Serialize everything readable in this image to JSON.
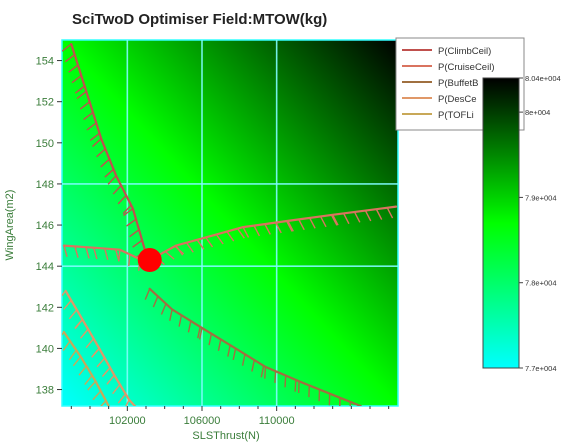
{
  "chart_data": {
    "type": "heatmap",
    "title": "SciTwoD Optimiser Field:MTOW(kg)",
    "xlabel": "SLSThrust(N)",
    "ylabel": "WingArea(m2)",
    "xlim": [
      98500,
      116500
    ],
    "ylim": [
      137.2,
      155.0
    ],
    "x_ticks": [
      102000,
      106000,
      110000
    ],
    "x_tick_labels": [
      "102000",
      "106000",
      "110000"
    ],
    "y_ticks": [
      138,
      140,
      142,
      144,
      146,
      148,
      150,
      152,
      154
    ],
    "y_tick_labels": [
      "138",
      "140",
      "142",
      "144",
      "146",
      "148",
      "150",
      "152",
      "154"
    ],
    "grid_x": [
      102000,
      106000,
      110000
    ],
    "grid_y": [
      144,
      148
    ],
    "grid": true,
    "legend_placement": "top-right",
    "colorbar": {
      "min": 77000,
      "max": 80400,
      "ticks": [
        77000,
        77600,
        78200,
        78800,
        79400,
        80000,
        80400
      ],
      "tick_labels": [
        "7.7e+004",
        "",
        "7.8e+004",
        "",
        "7.9e+004",
        "8e+004",
        "8.04e+004"
      ],
      "label_ticks": [
        77000,
        78000,
        79000,
        80000,
        80400
      ],
      "colors": [
        "#00ffff",
        "#00ff00",
        "#000000"
      ]
    },
    "field": {
      "low_corner": "bottom-left",
      "high_corner": "top-right",
      "colors": [
        "#00ffff",
        "#00ff00",
        "#000000"
      ]
    },
    "optimum": {
      "x": 103200,
      "y": 144.3,
      "color": "#ff0000"
    },
    "series": [
      {
        "name": "P(ClimbCeil)",
        "color": "#c0504d",
        "points": [
          [
            99000,
            154.8
          ],
          [
            99800,
            152.5
          ],
          [
            100600,
            150.2
          ],
          [
            101400,
            148.4
          ],
          [
            102300,
            146.8
          ],
          [
            103000,
            144.6
          ]
        ]
      },
      {
        "name": "P(CruiseCeil)",
        "color": "#d9735f",
        "points": [
          [
            98600,
            145.0
          ],
          [
            100200,
            144.9
          ],
          [
            101600,
            144.8
          ],
          [
            103000,
            144.2
          ],
          [
            104600,
            145.0
          ],
          [
            106200,
            145.4
          ],
          [
            108200,
            145.9
          ],
          [
            110600,
            146.2
          ],
          [
            113000,
            146.5
          ],
          [
            116400,
            146.9
          ]
        ]
      },
      {
        "name": "P(BuffetBoundary)",
        "color": "#a07040",
        "points": [
          [
            103200,
            142.9
          ],
          [
            104400,
            141.9
          ],
          [
            106000,
            141.0
          ],
          [
            107800,
            140.0
          ],
          [
            109400,
            139.1
          ],
          [
            111200,
            138.4
          ],
          [
            113400,
            137.6
          ],
          [
            114500,
            137.2
          ]
        ]
      },
      {
        "name": "P(DesCeil)",
        "color": "#e09868",
        "points": [
          [
            98700,
            142.8
          ],
          [
            99600,
            141.4
          ],
          [
            100500,
            140.0
          ],
          [
            101300,
            138.7
          ],
          [
            102100,
            137.5
          ],
          [
            102400,
            137.2
          ]
        ]
      },
      {
        "name": "P(TOFL)",
        "color": "#c8a858",
        "points": [
          [
            98600,
            140.8
          ],
          [
            99500,
            139.6
          ],
          [
            100300,
            138.4
          ],
          [
            101000,
            137.2
          ]
        ]
      }
    ],
    "legend_labels": [
      "P(ClimbCeil)",
      "P(CruiseCeil)",
      "P(BuffetB",
      "P(DesCe",
      "P(TOFLi"
    ]
  }
}
